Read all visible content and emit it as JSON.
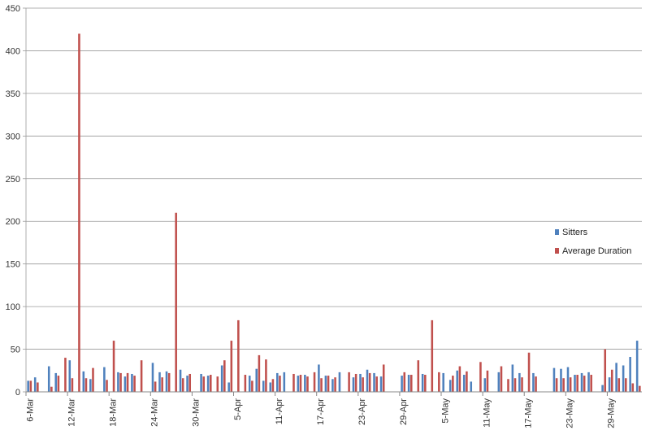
{
  "chart_data": {
    "type": "bar",
    "title": "",
    "xlabel": "",
    "ylabel": "",
    "ylim": [
      0,
      450
    ],
    "yticks": [
      0,
      50,
      100,
      150,
      200,
      250,
      300,
      350,
      400,
      450
    ],
    "grid": true,
    "legend_position": "right",
    "categories": [
      "6-Mar",
      "7-Mar",
      "8-Mar",
      "9-Mar",
      "10-Mar",
      "11-Mar",
      "12-Mar",
      "13-Mar",
      "14-Mar",
      "15-Mar",
      "16-Mar",
      "17-Mar",
      "18-Mar",
      "19-Mar",
      "20-Mar",
      "21-Mar",
      "22-Mar",
      "23-Mar",
      "24-Mar",
      "25-Mar",
      "26-Mar",
      "27-Mar",
      "28-Mar",
      "29-Mar",
      "30-Mar",
      "31-Mar",
      "1-Apr",
      "2-Apr",
      "3-Apr",
      "4-Apr",
      "5-Apr",
      "6-Apr",
      "7-Apr",
      "8-Apr",
      "9-Apr",
      "10-Apr",
      "11-Apr",
      "12-Apr",
      "13-Apr",
      "14-Apr",
      "15-Apr",
      "16-Apr",
      "17-Apr",
      "18-Apr",
      "19-Apr",
      "20-Apr",
      "21-Apr",
      "22-Apr",
      "23-Apr",
      "24-Apr",
      "25-Apr",
      "26-Apr",
      "27-Apr",
      "28-Apr",
      "29-Apr",
      "30-Apr",
      "1-May",
      "2-May",
      "3-May",
      "4-May",
      "5-May",
      "6-May",
      "7-May",
      "8-May",
      "9-May",
      "10-May",
      "11-May",
      "12-May",
      "13-May",
      "14-May",
      "15-May",
      "16-May",
      "17-May",
      "18-May",
      "19-May",
      "20-May",
      "21-May",
      "22-May",
      "23-May",
      "24-May",
      "25-May",
      "26-May",
      "27-May",
      "28-May",
      "29-May",
      "30-May",
      "31-May",
      "1-Jun",
      "2-Jun"
    ],
    "tick_labels": [
      "6-Mar",
      "12-Mar",
      "18-Mar",
      "24-Mar",
      "30-Mar",
      "5-Apr",
      "11-Apr",
      "17-Apr",
      "23-Apr",
      "29-Apr",
      "5-May",
      "11-May",
      "17-May",
      "23-May",
      "29-May"
    ],
    "tick_every": 6,
    "series": [
      {
        "name": "Sitters",
        "color": "#4F81BD",
        "values": [
          13,
          17,
          0,
          30,
          22,
          0,
          37,
          0,
          24,
          15,
          0,
          29,
          0,
          23,
          18,
          21,
          0,
          0,
          34,
          23,
          24,
          0,
          26,
          19,
          0,
          21,
          19,
          0,
          31,
          11,
          0,
          0,
          19,
          27,
          13,
          11,
          22,
          23,
          0,
          19,
          20,
          0,
          32,
          19,
          15,
          23,
          0,
          17,
          21,
          26,
          22,
          18,
          0,
          0,
          19,
          20,
          0,
          21,
          0,
          0,
          22,
          14,
          25,
          20,
          12,
          0,
          16,
          0,
          23,
          0,
          32,
          22,
          0,
          22,
          0,
          0,
          28,
          27,
          29,
          20,
          22,
          23,
          0,
          8,
          17,
          34,
          31,
          41,
          60
        ]
      },
      {
        "name": "Average Duration",
        "color": "#C0504D",
        "values": [
          13,
          11,
          0,
          6,
          19,
          40,
          16,
          420,
          16,
          28,
          0,
          14,
          60,
          22,
          22,
          19,
          37,
          0,
          12,
          17,
          22,
          210,
          16,
          21,
          0,
          18,
          20,
          18,
          37,
          60,
          84,
          20,
          13,
          43,
          38,
          15,
          19,
          0,
          21,
          20,
          18,
          23,
          16,
          19,
          17,
          0,
          23,
          21,
          17,
          22,
          18,
          32,
          0,
          0,
          23,
          20,
          37,
          20,
          84,
          23,
          0,
          19,
          30,
          24,
          0,
          35,
          25,
          0,
          30,
          15,
          16,
          17,
          46,
          18,
          0,
          0,
          16,
          16,
          17,
          20,
          19,
          20,
          0,
          50,
          26,
          16,
          16,
          10,
          7
        ]
      }
    ]
  }
}
